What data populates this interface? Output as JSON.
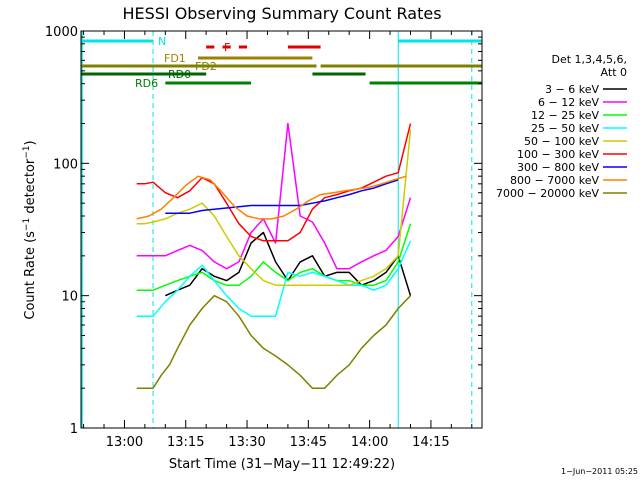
{
  "chart_data": {
    "type": "line",
    "title": "HESSI Observing Summary Count Rates",
    "xlabel": "Start Time (31−May−11 12:49:22)",
    "ylabel_main": "Count Rate (s",
    "ylabel_sup1": "−1",
    "ylabel_mid": " detector",
    "ylabel_sup2": "−1",
    "ylabel_end": ")",
    "y_scale": "log",
    "xlim": [
      "12:49:22",
      "14:27:30"
    ],
    "ylim": [
      1,
      1000
    ],
    "x_ticks": [
      "13:00",
      "13:15",
      "13:30",
      "13:45",
      "14:00",
      "14:15"
    ],
    "y_ticks": [
      "1",
      "10",
      "100",
      "1000"
    ],
    "legend_title": [
      "Det 1,3,4,5,6,",
      "Att 0"
    ],
    "legend_position": "right",
    "timestamp": "1−Jun−2011 05:25",
    "flags": [
      {
        "label": "N",
        "color": "#00e5e5",
        "segments": [
          [
            "12:49:22",
            "13:07"
          ],
          [
            "14:07",
            "14:27:30"
          ]
        ]
      },
      {
        "label": "F",
        "color": "#e00000",
        "segments": [
          [
            "13:20",
            "13:22"
          ],
          [
            "13:24",
            "13:26"
          ],
          [
            "13:28",
            "13:30"
          ],
          [
            "13:40",
            "13:48"
          ]
        ]
      },
      {
        "label": "FD1",
        "color": "#a08000",
        "segments": [
          [
            "13:18",
            "13:46"
          ]
        ]
      },
      {
        "label": "FD2",
        "color": "#808000",
        "segments": [
          [
            "12:49:22",
            "13:47"
          ],
          [
            "13:48",
            "14:27:30"
          ]
        ]
      },
      {
        "label": "RD0",
        "color": "#006400",
        "segments": [
          [
            "12:49:22",
            "13:20"
          ],
          [
            "13:46",
            "13:59"
          ]
        ]
      },
      {
        "label": "RD6",
        "color": "#008000",
        "segments": [
          [
            "13:10",
            "13:31"
          ],
          [
            "14:00",
            "14:27:30"
          ]
        ]
      }
    ],
    "vlines": [
      {
        "time": "13:07",
        "color": "#00e5e5"
      },
      {
        "time": "14:07",
        "color": "#00e5e5"
      },
      {
        "time": "14:25",
        "color": "#00e5e5"
      }
    ],
    "series": [
      {
        "name": "3 − 6 keV",
        "color": "#000000",
        "x": [
          "13:03",
          "13:05",
          "13:07",
          "13:10",
          "13:13",
          "13:16",
          "13:19",
          "13:22",
          "13:25",
          "13:28",
          "13:31",
          "13:34",
          "13:37",
          "13:40",
          "13:43",
          "13:46",
          "13:49",
          "13:52",
          "13:55",
          "13:58",
          "14:01",
          "14:04",
          "14:07",
          "14:10"
        ],
        "y": [
          null,
          null,
          null,
          10,
          11,
          12,
          16,
          14,
          13,
          15,
          25,
          30,
          18,
          13,
          18,
          20,
          14,
          15,
          15,
          12,
          13,
          15,
          20,
          10
        ]
      },
      {
        "name": "6 − 12 keV",
        "color": "#ff00ff",
        "x": [
          "13:03",
          "13:05",
          "13:07",
          "13:10",
          "13:13",
          "13:16",
          "13:19",
          "13:22",
          "13:25",
          "13:28",
          "13:31",
          "13:34",
          "13:37",
          "13:40",
          "13:43",
          "13:46",
          "13:49",
          "13:52",
          "13:55",
          "13:58",
          "14:01",
          "14:04",
          "14:07",
          "14:10"
        ],
        "y": [
          20,
          20,
          20,
          20,
          22,
          24,
          22,
          18,
          16,
          18,
          30,
          38,
          25,
          200,
          40,
          36,
          25,
          16,
          16,
          18,
          20,
          22,
          28,
          55
        ]
      },
      {
        "name": "12 − 25 keV",
        "color": "#00ff00",
        "x": [
          "13:03",
          "13:05",
          "13:07",
          "13:10",
          "13:13",
          "13:16",
          "13:19",
          "13:22",
          "13:25",
          "13:28",
          "13:31",
          "13:34",
          "13:37",
          "13:40",
          "13:43",
          "13:46",
          "13:49",
          "13:52",
          "13:55",
          "13:58",
          "14:01",
          "14:04",
          "14:07",
          "14:10"
        ],
        "y": [
          11,
          11,
          11,
          12,
          13,
          14,
          15,
          13,
          12,
          12,
          14,
          18,
          15,
          13,
          15,
          16,
          14,
          13,
          13,
          12,
          12,
          13,
          18,
          35
        ]
      },
      {
        "name": "25 − 50 keV",
        "color": "#00ffff",
        "x": [
          "13:03",
          "13:05",
          "13:07",
          "13:10",
          "13:13",
          "13:16",
          "13:19",
          "13:22",
          "13:25",
          "13:28",
          "13:31",
          "13:34",
          "13:37",
          "13:40",
          "13:43",
          "13:46",
          "13:49",
          "13:52",
          "13:55",
          "13:58",
          "14:01",
          "14:04",
          "14:07",
          "14:10"
        ],
        "y": [
          7,
          7,
          7,
          9,
          11,
          14,
          17,
          13,
          10,
          8,
          7,
          7,
          7,
          15,
          14,
          15,
          14,
          13,
          12,
          12,
          11,
          12,
          16,
          26
        ]
      },
      {
        "name": "50 − 100 keV",
        "color": "#cccc00",
        "x": [
          "13:03",
          "13:05",
          "13:07",
          "13:10",
          "13:13",
          "13:16",
          "13:19",
          "13:22",
          "13:25",
          "13:28",
          "13:31",
          "13:34",
          "13:37",
          "13:40",
          "13:43",
          "13:46",
          "13:49",
          "13:52",
          "13:55",
          "13:58",
          "14:01",
          "14:04",
          "14:07",
          "14:10"
        ],
        "y": [
          35,
          35,
          36,
          38,
          42,
          45,
          50,
          40,
          28,
          20,
          16,
          13,
          12,
          12,
          12,
          12,
          12,
          12,
          12,
          13,
          14,
          16,
          20,
          180
        ]
      },
      {
        "name": "100 − 300 keV",
        "color": "#ff0000",
        "x": [
          "13:03",
          "13:05",
          "13:07",
          "13:10",
          "13:13",
          "13:16",
          "13:19",
          "13:22",
          "13:25",
          "13:28",
          "13:31",
          "13:34",
          "13:37",
          "13:40",
          "13:43",
          "13:46",
          "13:49",
          "13:52",
          "13:55",
          "13:58",
          "14:01",
          "14:04",
          "14:07",
          "14:10"
        ],
        "y": [
          70,
          70,
          72,
          60,
          55,
          62,
          78,
          70,
          50,
          35,
          28,
          26,
          26,
          26,
          30,
          45,
          55,
          58,
          62,
          65,
          72,
          80,
          85,
          200
        ]
      },
      {
        "name": "300 − 800 keV",
        "color": "#0000ff",
        "x": [
          "13:10",
          "13:13",
          "13:16",
          "13:19",
          "13:22",
          "13:25",
          "13:28",
          "13:31",
          "13:34",
          "13:37",
          "13:40",
          "13:43",
          "13:46",
          "13:49",
          "13:52",
          "13:55",
          "13:58",
          "14:01",
          "14:04",
          "14:07"
        ],
        "y": [
          42,
          42,
          42,
          44,
          45,
          46,
          47,
          48,
          48,
          48,
          48,
          48,
          50,
          52,
          55,
          58,
          62,
          65,
          70,
          75
        ]
      },
      {
        "name": "800 − 7000 keV",
        "color": "#ff8000",
        "x": [
          "13:03",
          "13:06",
          "13:09",
          "13:12",
          "13:15",
          "13:18",
          "13:21",
          "13:24",
          "13:27",
          "13:30",
          "13:33",
          "13:36",
          "13:39",
          "13:42",
          "13:45",
          "13:48",
          "13:51",
          "13:54",
          "13:57",
          "14:00",
          "14:03",
          "14:06",
          "14:09"
        ],
        "y": [
          38,
          40,
          45,
          55,
          68,
          80,
          75,
          60,
          47,
          40,
          38,
          38,
          40,
          45,
          52,
          58,
          60,
          62,
          64,
          66,
          70,
          75,
          80
        ]
      },
      {
        "name": "7000 − 20000 keV",
        "color": "#808000",
        "x": [
          "13:03",
          "13:05",
          "13:07",
          "13:09",
          "13:11",
          "13:13",
          "13:16",
          "13:19",
          "13:22",
          "13:25",
          "13:28",
          "13:31",
          "13:34",
          "13:37",
          "13:40",
          "13:43",
          "13:46",
          "13:49",
          "13:52",
          "13:55",
          "13:58",
          "14:01",
          "14:04",
          "14:07",
          "14:10"
        ],
        "y": [
          2,
          2,
          2,
          2.5,
          3,
          4,
          6,
          8,
          10,
          9,
          7,
          5,
          4,
          3.5,
          3,
          2.5,
          2,
          2,
          2.5,
          3,
          4,
          5,
          6,
          8,
          10
        ]
      }
    ]
  }
}
